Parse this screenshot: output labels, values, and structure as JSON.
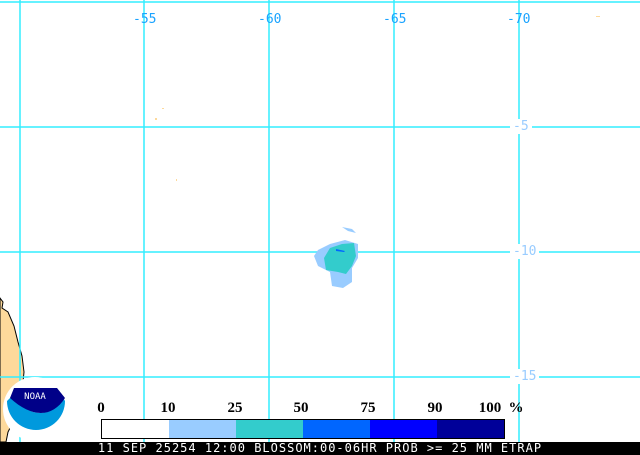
{
  "map": {
    "longitude_labels": [
      "-55",
      "-60",
      "-65",
      "-70"
    ],
    "latitude_labels": [
      "-5",
      "-10",
      "-15"
    ],
    "grid_color": "#33eeff",
    "land_color": "#fdd99b"
  },
  "legend": {
    "ticks": [
      "0",
      "10",
      "25",
      "50",
      "75",
      "90",
      "100"
    ],
    "unit": "%",
    "colors": [
      "#ffffff",
      "#99ccff",
      "#33cccc",
      "#0066ff",
      "#0000ff",
      "#000099"
    ]
  },
  "logo": {
    "text": "NOAA"
  },
  "footer": {
    "caption": "11 SEP 25254 12:00 BLOSSOM:00-06HR PROB >= 25 MM ETRAP"
  }
}
